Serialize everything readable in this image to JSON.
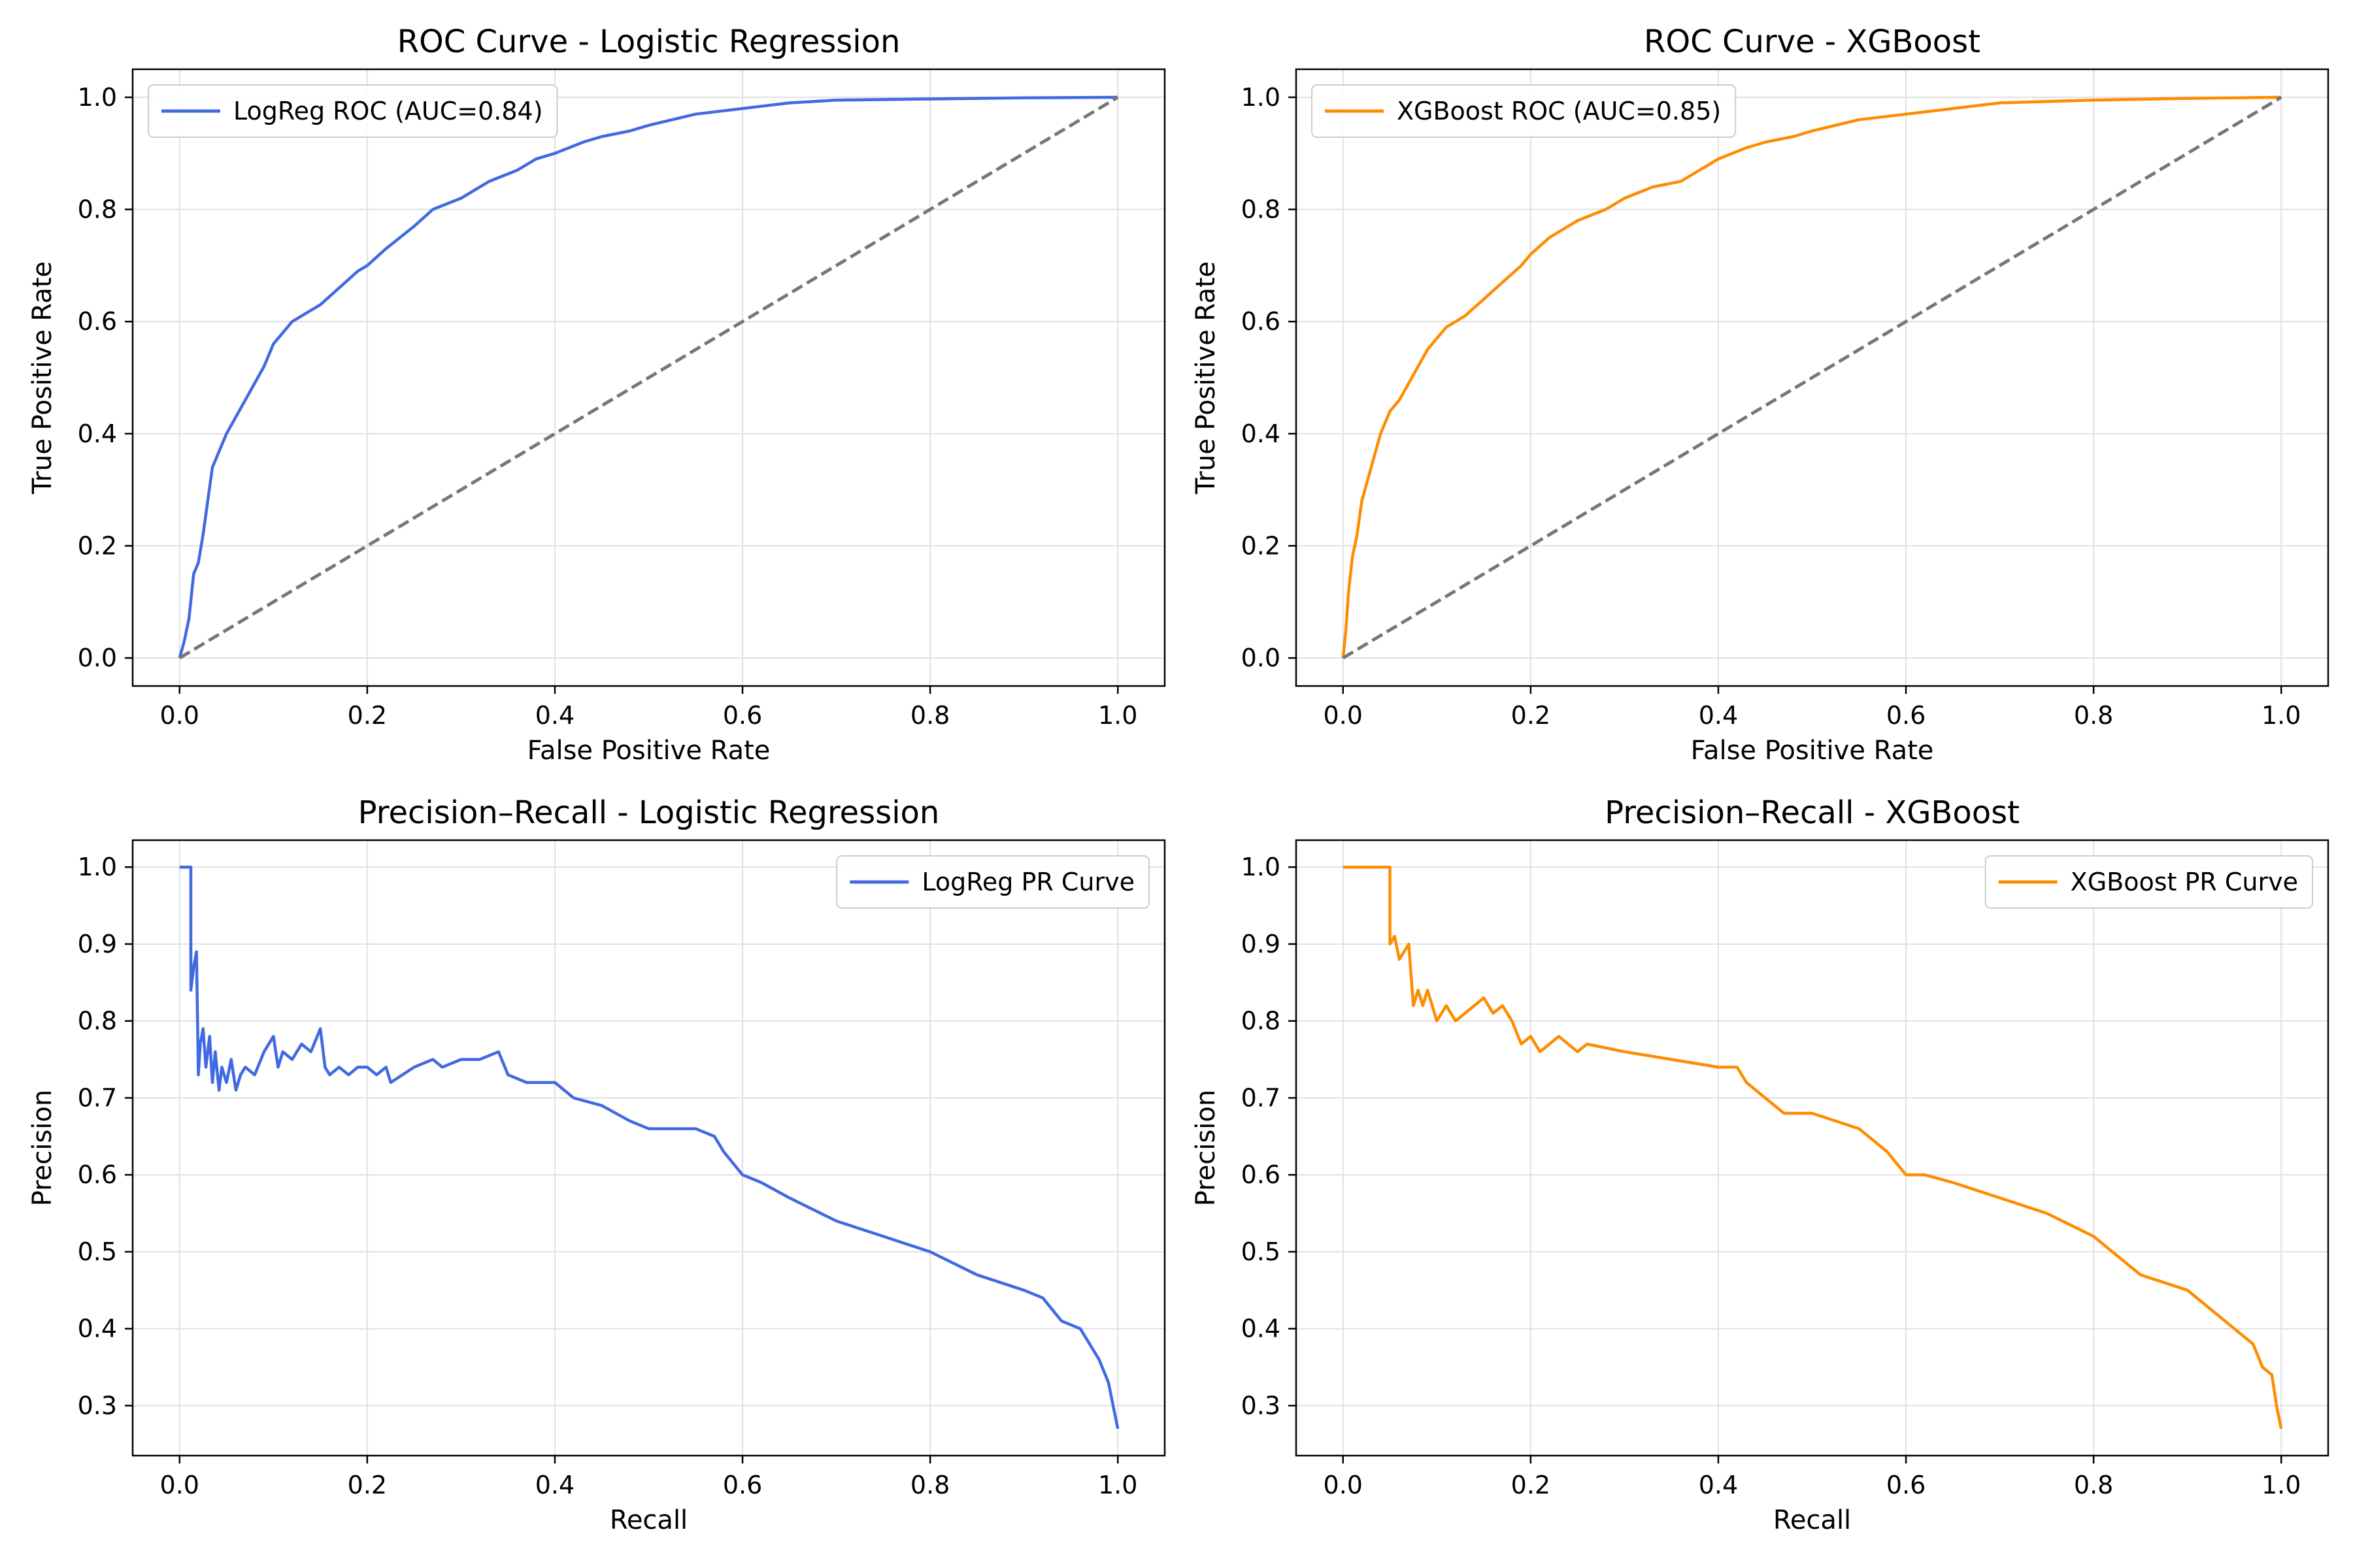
{
  "chart_data": [
    {
      "type": "line",
      "title": "ROC Curve - Logistic Regression",
      "xlabel": "False Positive Rate",
      "ylabel": "True Positive Rate",
      "xlim": [
        -0.05,
        1.05
      ],
      "ylim": [
        -0.05,
        1.05
      ],
      "xticks": [
        "0.0",
        "0.2",
        "0.4",
        "0.6",
        "0.8",
        "1.0"
      ],
      "yticks": [
        "0.0",
        "0.2",
        "0.4",
        "0.6",
        "0.8",
        "1.0"
      ],
      "grid": true,
      "legend_position": "upper left",
      "series": [
        {
          "name": "LogReg ROC (AUC=0.84)",
          "color": "#4169e1",
          "style": "solid",
          "x": [
            0.0,
            0.005,
            0.01,
            0.015,
            0.02,
            0.025,
            0.03,
            0.035,
            0.04,
            0.05,
            0.06,
            0.07,
            0.08,
            0.09,
            0.1,
            0.11,
            0.12,
            0.13,
            0.15,
            0.17,
            0.19,
            0.2,
            0.22,
            0.25,
            0.27,
            0.3,
            0.33,
            0.36,
            0.38,
            0.4,
            0.43,
            0.45,
            0.48,
            0.5,
            0.55,
            0.6,
            0.65,
            0.7,
            0.8,
            0.9,
            1.0
          ],
          "y": [
            0.0,
            0.03,
            0.07,
            0.15,
            0.17,
            0.22,
            0.28,
            0.34,
            0.36,
            0.4,
            0.43,
            0.46,
            0.49,
            0.52,
            0.56,
            0.58,
            0.6,
            0.61,
            0.63,
            0.66,
            0.69,
            0.7,
            0.73,
            0.77,
            0.8,
            0.82,
            0.85,
            0.87,
            0.89,
            0.9,
            0.92,
            0.93,
            0.94,
            0.95,
            0.97,
            0.98,
            0.99,
            0.995,
            0.997,
            0.999,
            1.0
          ]
        },
        {
          "name": "",
          "color": "#777777",
          "style": "dashed",
          "x": [
            0.0,
            1.0
          ],
          "y": [
            0.0,
            1.0
          ]
        }
      ]
    },
    {
      "type": "line",
      "title": "ROC Curve - XGBoost",
      "xlabel": "False Positive Rate",
      "ylabel": "True Positive Rate",
      "xlim": [
        -0.05,
        1.05
      ],
      "ylim": [
        -0.05,
        1.05
      ],
      "xticks": [
        "0.0",
        "0.2",
        "0.4",
        "0.6",
        "0.8",
        "1.0"
      ],
      "yticks": [
        "0.0",
        "0.2",
        "0.4",
        "0.6",
        "0.8",
        "1.0"
      ],
      "grid": true,
      "legend_position": "upper left",
      "series": [
        {
          "name": "XGBoost ROC (AUC=0.85)",
          "color": "#ff8c00",
          "style": "solid",
          "x": [
            0.0,
            0.003,
            0.006,
            0.01,
            0.015,
            0.02,
            0.03,
            0.04,
            0.05,
            0.06,
            0.07,
            0.08,
            0.09,
            0.1,
            0.11,
            0.13,
            0.15,
            0.17,
            0.19,
            0.2,
            0.22,
            0.25,
            0.28,
            0.3,
            0.33,
            0.36,
            0.38,
            0.4,
            0.43,
            0.45,
            0.48,
            0.5,
            0.55,
            0.6,
            0.65,
            0.7,
            0.8,
            0.9,
            1.0
          ],
          "y": [
            0.0,
            0.05,
            0.12,
            0.18,
            0.22,
            0.28,
            0.34,
            0.4,
            0.44,
            0.46,
            0.49,
            0.52,
            0.55,
            0.57,
            0.59,
            0.61,
            0.64,
            0.67,
            0.7,
            0.72,
            0.75,
            0.78,
            0.8,
            0.82,
            0.84,
            0.85,
            0.87,
            0.89,
            0.91,
            0.92,
            0.93,
            0.94,
            0.96,
            0.97,
            0.98,
            0.99,
            0.995,
            0.998,
            1.0
          ]
        },
        {
          "name": "",
          "color": "#777777",
          "style": "dashed",
          "x": [
            0.0,
            1.0
          ],
          "y": [
            0.0,
            1.0
          ]
        }
      ]
    },
    {
      "type": "line",
      "title": "Precision–Recall - Logistic Regression",
      "xlabel": "Recall",
      "ylabel": "Precision",
      "xlim": [
        -0.05,
        1.05
      ],
      "ylim": [
        0.235,
        1.035
      ],
      "xticks": [
        "0.0",
        "0.2",
        "0.4",
        "0.6",
        "0.8",
        "1.0"
      ],
      "yticks": [
        "0.3",
        "0.4",
        "0.5",
        "0.6",
        "0.7",
        "0.8",
        "0.9",
        "1.0"
      ],
      "grid": true,
      "legend_position": "upper right",
      "series": [
        {
          "name": "LogReg PR Curve",
          "color": "#4169e1",
          "style": "solid",
          "x": [
            0.0,
            0.012,
            0.012,
            0.015,
            0.018,
            0.02,
            0.022,
            0.025,
            0.028,
            0.032,
            0.035,
            0.038,
            0.042,
            0.045,
            0.05,
            0.055,
            0.06,
            0.065,
            0.07,
            0.08,
            0.09,
            0.1,
            0.105,
            0.11,
            0.12,
            0.13,
            0.14,
            0.15,
            0.155,
            0.16,
            0.17,
            0.18,
            0.19,
            0.2,
            0.21,
            0.22,
            0.225,
            0.25,
            0.27,
            0.28,
            0.3,
            0.32,
            0.34,
            0.35,
            0.37,
            0.4,
            0.42,
            0.45,
            0.48,
            0.5,
            0.55,
            0.57,
            0.58,
            0.6,
            0.62,
            0.65,
            0.7,
            0.75,
            0.8,
            0.85,
            0.9,
            0.92,
            0.94,
            0.96,
            0.97,
            0.98,
            0.99,
            0.995,
            1.0
          ],
          "y": [
            1.0,
            1.0,
            0.84,
            0.87,
            0.89,
            0.73,
            0.77,
            0.79,
            0.74,
            0.78,
            0.72,
            0.76,
            0.71,
            0.74,
            0.72,
            0.75,
            0.71,
            0.73,
            0.74,
            0.73,
            0.76,
            0.78,
            0.74,
            0.76,
            0.75,
            0.77,
            0.76,
            0.79,
            0.74,
            0.73,
            0.74,
            0.73,
            0.74,
            0.74,
            0.73,
            0.74,
            0.72,
            0.74,
            0.75,
            0.74,
            0.75,
            0.75,
            0.76,
            0.73,
            0.72,
            0.72,
            0.7,
            0.69,
            0.67,
            0.66,
            0.66,
            0.65,
            0.63,
            0.6,
            0.59,
            0.57,
            0.54,
            0.52,
            0.5,
            0.47,
            0.45,
            0.44,
            0.41,
            0.4,
            0.38,
            0.36,
            0.33,
            0.3,
            0.27
          ]
        }
      ]
    },
    {
      "type": "line",
      "title": "Precision–Recall - XGBoost",
      "xlabel": "Recall",
      "ylabel": "Precision",
      "xlim": [
        -0.05,
        1.05
      ],
      "ylim": [
        0.235,
        1.035
      ],
      "xticks": [
        "0.0",
        "0.2",
        "0.4",
        "0.6",
        "0.8",
        "1.0"
      ],
      "yticks": [
        "0.3",
        "0.4",
        "0.5",
        "0.6",
        "0.7",
        "0.8",
        "0.9",
        "1.0"
      ],
      "grid": true,
      "legend_position": "upper right",
      "series": [
        {
          "name": "XGBoost PR Curve",
          "color": "#ff8c00",
          "style": "solid",
          "x": [
            0.0,
            0.05,
            0.05,
            0.055,
            0.06,
            0.07,
            0.075,
            0.08,
            0.085,
            0.09,
            0.1,
            0.11,
            0.12,
            0.13,
            0.14,
            0.15,
            0.16,
            0.17,
            0.18,
            0.19,
            0.2,
            0.21,
            0.22,
            0.23,
            0.25,
            0.26,
            0.3,
            0.35,
            0.4,
            0.42,
            0.43,
            0.45,
            0.47,
            0.5,
            0.55,
            0.58,
            0.6,
            0.62,
            0.65,
            0.7,
            0.75,
            0.8,
            0.85,
            0.9,
            0.92,
            0.95,
            0.97,
            0.98,
            0.99,
            0.995,
            1.0
          ],
          "y": [
            1.0,
            1.0,
            0.9,
            0.91,
            0.88,
            0.9,
            0.82,
            0.84,
            0.82,
            0.84,
            0.8,
            0.82,
            0.8,
            0.81,
            0.82,
            0.83,
            0.81,
            0.82,
            0.8,
            0.77,
            0.78,
            0.76,
            0.77,
            0.78,
            0.76,
            0.77,
            0.76,
            0.75,
            0.74,
            0.74,
            0.72,
            0.7,
            0.68,
            0.68,
            0.66,
            0.63,
            0.6,
            0.6,
            0.59,
            0.57,
            0.55,
            0.52,
            0.47,
            0.45,
            0.43,
            0.4,
            0.38,
            0.35,
            0.34,
            0.3,
            0.27
          ]
        }
      ]
    }
  ]
}
